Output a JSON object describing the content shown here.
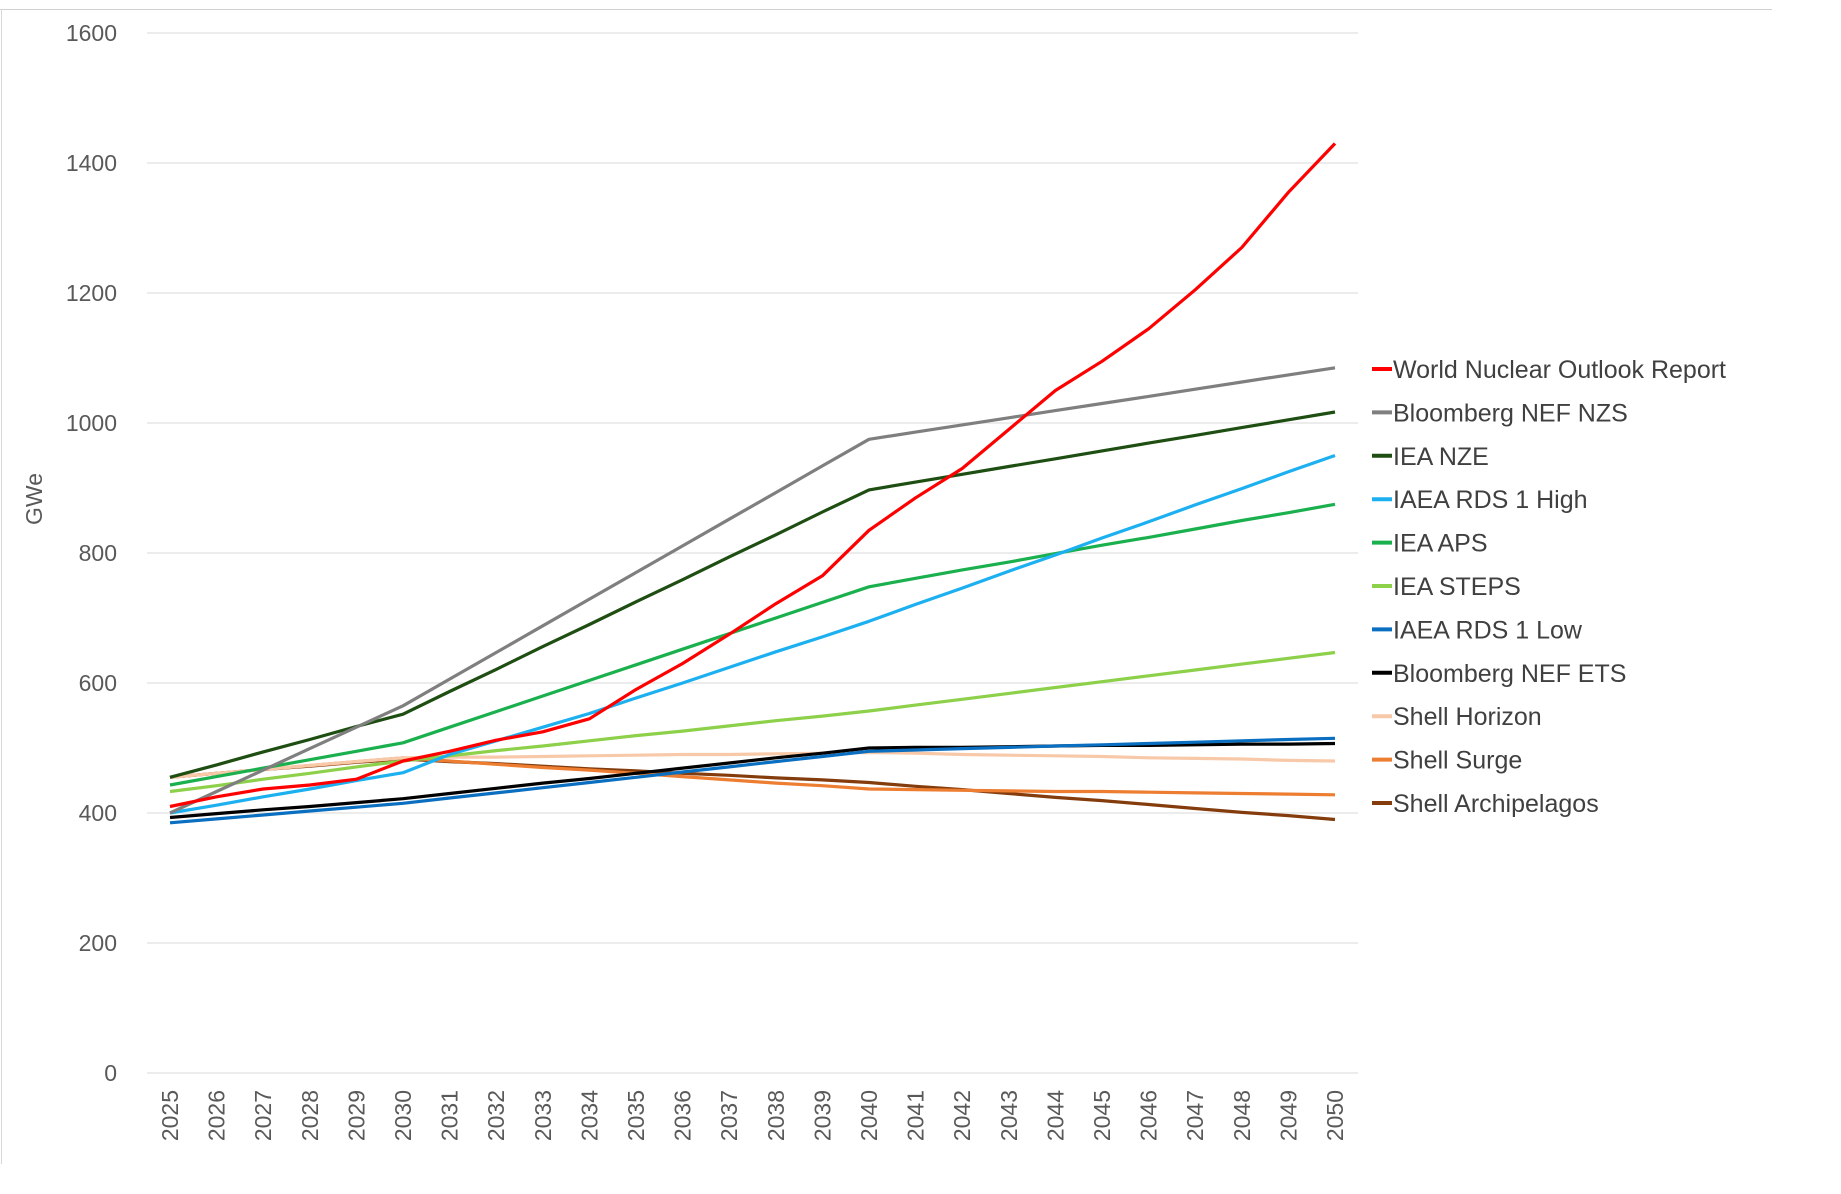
{
  "chart_data": {
    "type": "line",
    "title": "",
    "xlabel": "",
    "ylabel": "GWe",
    "ylim": [
      0,
      1600
    ],
    "yticks": [
      0,
      200,
      400,
      600,
      800,
      1000,
      1200,
      1400,
      1600
    ],
    "categories": [
      "2025",
      "2026",
      "2027",
      "2028",
      "2029",
      "2030",
      "2031",
      "2032",
      "2033",
      "2034",
      "2035",
      "2036",
      "2037",
      "2038",
      "2039",
      "2040",
      "2041",
      "2042",
      "2043",
      "2044",
      "2045",
      "2046",
      "2047",
      "2048",
      "2049",
      "2050"
    ],
    "grid": true,
    "legend_position": "right",
    "series": [
      {
        "name": "World Nuclear Outlook Report",
        "color": "#ff0000",
        "values": [
          410,
          425,
          437,
          443,
          452,
          480,
          495,
          512,
          525,
          545,
          590,
          630,
          675,
          722,
          765,
          835,
          885,
          930,
          990,
          1050,
          1095,
          1145,
          1205,
          1270,
          1355,
          1430
        ]
      },
      {
        "name": "Bloomberg NEF NZS",
        "color": "#7f7f7f",
        "values": [
          400,
          433,
          466,
          499,
          532,
          565,
          606,
          647,
          688,
          729,
          770,
          811,
          852,
          893,
          934,
          975,
          986,
          997,
          1008,
          1019,
          1030,
          1041,
          1052,
          1063,
          1074,
          1085
        ]
      },
      {
        "name": "IEA NZE",
        "color": "#1f4e12",
        "values": [
          455,
          474,
          494,
          513,
          533,
          552,
          587,
          621,
          656,
          690,
          725,
          759,
          794,
          828,
          863,
          897,
          909,
          921,
          933,
          945,
          957,
          969,
          981,
          993,
          1005,
          1017
        ]
      },
      {
        "name": "IAEA RDS 1 High",
        "color": "#1cb0f0",
        "values": [
          400,
          412,
          425,
          437,
          450,
          462,
          490,
          511,
          532,
          553,
          577,
          600,
          624,
          648,
          671,
          695,
          721,
          746,
          772,
          797,
          823,
          848,
          874,
          899,
          925,
          950
        ]
      },
      {
        "name": "IEA APS",
        "color": "#1bb04e",
        "values": [
          443,
          456,
          469,
          482,
          495,
          508,
          532,
          556,
          580,
          604,
          628,
          652,
          676,
          700,
          724,
          748,
          761,
          774,
          786,
          799,
          812,
          824,
          837,
          850,
          862,
          875
        ]
      },
      {
        "name": "IEA STEPS",
        "color": "#8dd04a",
        "values": [
          433,
          442,
          452,
          461,
          471,
          480,
          488,
          496,
          503,
          511,
          519,
          526,
          534,
          542,
          549,
          557,
          566,
          575,
          584,
          593,
          602,
          611,
          620,
          629,
          638,
          647
        ]
      },
      {
        "name": "IAEA RDS 1 Low",
        "color": "#0a6fc0",
        "values": [
          385,
          391,
          397,
          403,
          409,
          415,
          423,
          431,
          439,
          447,
          455,
          463,
          471,
          479,
          487,
          495,
          497,
          499,
          501,
          503,
          505,
          507,
          509,
          511,
          513,
          515
        ]
      },
      {
        "name": "Bloomberg NEF ETS",
        "color": "#000000",
        "values": [
          393,
          399,
          405,
          410,
          416,
          422,
          430,
          438,
          446,
          453,
          461,
          469,
          477,
          485,
          492,
          500,
          501,
          501,
          502,
          503,
          504,
          504,
          505,
          506,
          506,
          507
        ]
      },
      {
        "name": "Shell Horizon",
        "color": "#f8c9a8",
        "values": [
          455,
          461,
          467,
          473,
          479,
          485,
          486,
          486,
          487,
          488,
          489,
          490,
          490,
          491,
          492,
          493,
          492,
          490,
          489,
          488,
          487,
          485,
          484,
          483,
          481,
          480
        ]
      },
      {
        "name": "Shell Surge",
        "color": "#ed7d31",
        "values": [
          455,
          461,
          467,
          473,
          479,
          485,
          480,
          475,
          470,
          466,
          461,
          456,
          451,
          446,
          442,
          437,
          436,
          435,
          434,
          433,
          433,
          432,
          431,
          430,
          429,
          428
        ]
      },
      {
        "name": "Shell Archipelagos",
        "color": "#843c0c",
        "values": [
          455,
          461,
          467,
          472,
          478,
          483,
          479,
          476,
          472,
          468,
          465,
          461,
          458,
          454,
          451,
          447,
          441,
          436,
          430,
          424,
          419,
          413,
          407,
          401,
          396,
          390
        ]
      }
    ]
  }
}
